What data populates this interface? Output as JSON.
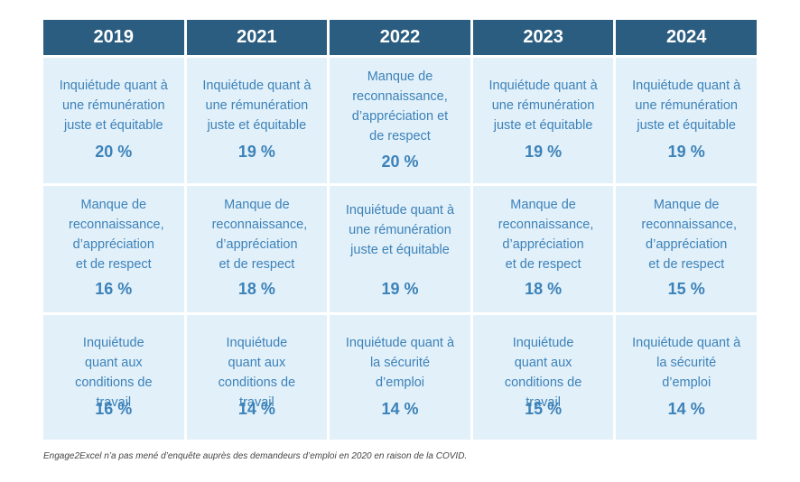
{
  "headers": [
    "2019",
    "2021",
    "2022",
    "2023",
    "2024"
  ],
  "rows": [
    [
      {
        "label": "Inquiétude quant à une rémunération juste et équitable",
        "pct": "20 %"
      },
      {
        "label": "Inquiétude quant à une rémunération juste et équitable",
        "pct": "19 %"
      },
      {
        "label": "Manque de reconnaissance, d’appréciation et de respect",
        "pct": "20 %"
      },
      {
        "label": "Inquiétude quant à une rémunération juste et équitable",
        "pct": "19 %"
      },
      {
        "label": "Inquiétude quant à une rémunération juste et équitable",
        "pct": "19 %"
      }
    ],
    [
      {
        "label": "Manque de reconnaissance, d’appréciation et de respect",
        "pct": "16 %"
      },
      {
        "label": "Manque de reconnaissance, d’appréciation et de respect",
        "pct": "18 %"
      },
      {
        "label": "Inquiétude quant à une rémunération juste et équitable",
        "pct": "19 %"
      },
      {
        "label": "Manque de reconnaissance, d’appréciation et de respect",
        "pct": "18 %"
      },
      {
        "label": "Manque de reconnaissance, d’appréciation et de respect",
        "pct": "15 %"
      }
    ],
    [
      {
        "label": "Inquiétude quant aux conditions de travail",
        "pct": "16 %"
      },
      {
        "label": "Inquiétude quant aux conditions de travail",
        "pct": "14 %"
      },
      {
        "label": "Inquiétude quant à la sécurité d’emploi",
        "pct": "14 %"
      },
      {
        "label": "Inquiétude quant aux conditions de travail",
        "pct": "15 %"
      },
      {
        "label": "Inquiétude quant à la sécurité d’emploi",
        "pct": "14 %"
      }
    ]
  ],
  "footnote": "Engage2Excel n’a pas mené d’enquête auprès des demandeurs d’emploi en 2020 en raison de la COVID."
}
